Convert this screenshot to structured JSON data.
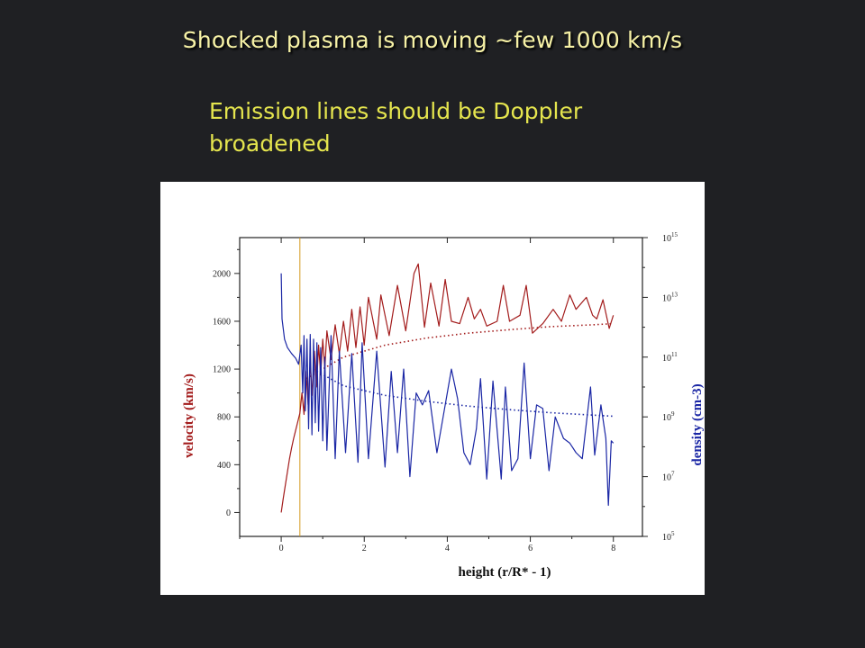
{
  "slide": {
    "title": "Shocked plasma is moving ~few 1000 km/s",
    "bullet": "Emission lines should be Doppler\nbroadened"
  },
  "colors": {
    "background": "#1f2023",
    "title": "#f7f2a6",
    "bullet": "#e5e54e",
    "velocity_series": "#a31c1c",
    "density_series": "#1b27a5",
    "marker_line": "#d49a20"
  },
  "chart_data": {
    "type": "line",
    "title": "",
    "xlabel": "height (r/R* - 1)",
    "ylabel": "velocity (km/s)",
    "y2label": "density (cm-3)",
    "xlim": [
      -1,
      8.7
    ],
    "ylim": [
      -200,
      2300
    ],
    "y2lim_log": [
      5,
      15
    ],
    "x_ticks": [
      "0",
      "2",
      "4",
      "6",
      "8"
    ],
    "y_ticks": [
      "0",
      "400",
      "800",
      "1200",
      "1600",
      "2000"
    ],
    "y2_ticks_exponents": [
      "15",
      "13",
      "11",
      "9",
      "7",
      "5"
    ],
    "y2_tick_base": "10",
    "grid": false,
    "vertical_marker_x": 0.45,
    "series": [
      {
        "axis": "left",
        "style": "solid",
        "points": [
          [
            0.0,
            0
          ],
          [
            0.05,
            120
          ],
          [
            0.1,
            230
          ],
          [
            0.15,
            340
          ],
          [
            0.2,
            450
          ],
          [
            0.25,
            540
          ],
          [
            0.3,
            620
          ],
          [
            0.35,
            690
          ],
          [
            0.4,
            760
          ],
          [
            0.45,
            830
          ],
          [
            0.5,
            1000
          ],
          [
            0.55,
            820
          ],
          [
            0.6,
            1180
          ],
          [
            0.65,
            900
          ],
          [
            0.7,
            1250
          ],
          [
            0.75,
            980
          ],
          [
            0.8,
            1350
          ],
          [
            0.85,
            1050
          ],
          [
            0.9,
            1400
          ],
          [
            0.95,
            1150
          ],
          [
            1.0,
            1450
          ],
          [
            1.05,
            1200
          ],
          [
            1.1,
            1520
          ],
          [
            1.2,
            1280
          ],
          [
            1.3,
            1570
          ],
          [
            1.4,
            1330
          ],
          [
            1.5,
            1600
          ],
          [
            1.6,
            1350
          ],
          [
            1.7,
            1700
          ],
          [
            1.8,
            1380
          ],
          [
            1.9,
            1720
          ],
          [
            2.0,
            1400
          ],
          [
            2.1,
            1800
          ],
          [
            2.3,
            1450
          ],
          [
            2.4,
            1820
          ],
          [
            2.6,
            1480
          ],
          [
            2.8,
            1900
          ],
          [
            3.0,
            1520
          ],
          [
            3.2,
            2000
          ],
          [
            3.3,
            2080
          ],
          [
            3.45,
            1550
          ],
          [
            3.6,
            1920
          ],
          [
            3.8,
            1560
          ],
          [
            3.95,
            1950
          ],
          [
            4.1,
            1600
          ],
          [
            4.3,
            1580
          ],
          [
            4.5,
            1800
          ],
          [
            4.65,
            1620
          ],
          [
            4.8,
            1700
          ],
          [
            4.95,
            1560
          ],
          [
            5.2,
            1600
          ],
          [
            5.35,
            1900
          ],
          [
            5.5,
            1600
          ],
          [
            5.75,
            1650
          ],
          [
            5.9,
            1900
          ],
          [
            6.05,
            1500
          ],
          [
            6.3,
            1580
          ],
          [
            6.55,
            1700
          ],
          [
            6.75,
            1600
          ],
          [
            6.95,
            1820
          ],
          [
            7.1,
            1700
          ],
          [
            7.35,
            1800
          ],
          [
            7.5,
            1650
          ],
          [
            7.6,
            1620
          ],
          [
            7.75,
            1780
          ],
          [
            7.9,
            1540
          ],
          [
            8.0,
            1650
          ]
        ]
      },
      {
        "axis": "left",
        "style": "dotted",
        "points": [
          [
            0.6,
            1120
          ],
          [
            1.5,
            1300
          ],
          [
            2.5,
            1400
          ],
          [
            3.5,
            1460
          ],
          [
            4.5,
            1500
          ],
          [
            5.5,
            1530
          ],
          [
            6.5,
            1555
          ],
          [
            7.5,
            1570
          ],
          [
            8.0,
            1580
          ]
        ]
      },
      {
        "axis": "left",
        "style": "solid",
        "points": [
          [
            0.0,
            2000
          ],
          [
            0.02,
            1620
          ],
          [
            0.08,
            1450
          ],
          [
            0.15,
            1380
          ],
          [
            0.25,
            1330
          ],
          [
            0.35,
            1290
          ],
          [
            0.42,
            1240
          ],
          [
            0.48,
            1400
          ],
          [
            0.52,
            1000
          ],
          [
            0.55,
            1480
          ],
          [
            0.58,
            850
          ],
          [
            0.62,
            1450
          ],
          [
            0.66,
            700
          ],
          [
            0.7,
            1490
          ],
          [
            0.74,
            650
          ],
          [
            0.78,
            1450
          ],
          [
            0.82,
            750
          ],
          [
            0.86,
            1420
          ],
          [
            0.9,
            680
          ],
          [
            0.95,
            1380
          ],
          [
            1.0,
            600
          ],
          [
            1.05,
            1300
          ],
          [
            1.1,
            520
          ],
          [
            1.2,
            1480
          ],
          [
            1.3,
            450
          ],
          [
            1.4,
            1350
          ],
          [
            1.55,
            500
          ],
          [
            1.7,
            1330
          ],
          [
            1.85,
            420
          ],
          [
            1.95,
            1420
          ],
          [
            2.1,
            450
          ],
          [
            2.3,
            1350
          ],
          [
            2.5,
            380
          ],
          [
            2.65,
            1180
          ],
          [
            2.8,
            500
          ],
          [
            2.95,
            1200
          ],
          [
            3.1,
            300
          ],
          [
            3.25,
            1000
          ],
          [
            3.4,
            900
          ],
          [
            3.55,
            1020
          ],
          [
            3.75,
            500
          ],
          [
            3.9,
            800
          ],
          [
            4.0,
            1000
          ],
          [
            4.1,
            1200
          ],
          [
            4.25,
            950
          ],
          [
            4.4,
            500
          ],
          [
            4.55,
            400
          ],
          [
            4.7,
            700
          ],
          [
            4.8,
            1120
          ],
          [
            4.95,
            280
          ],
          [
            5.1,
            1100
          ],
          [
            5.3,
            280
          ],
          [
            5.4,
            1050
          ],
          [
            5.55,
            350
          ],
          [
            5.7,
            450
          ],
          [
            5.85,
            1250
          ],
          [
            6.0,
            450
          ],
          [
            6.15,
            900
          ],
          [
            6.3,
            870
          ],
          [
            6.45,
            350
          ],
          [
            6.6,
            800
          ],
          [
            6.8,
            620
          ],
          [
            6.95,
            580
          ],
          [
            7.1,
            500
          ],
          [
            7.25,
            450
          ],
          [
            7.45,
            1050
          ],
          [
            7.55,
            480
          ],
          [
            7.7,
            900
          ],
          [
            7.82,
            620
          ],
          [
            7.88,
            60
          ],
          [
            7.95,
            600
          ],
          [
            8.0,
            580
          ]
        ]
      },
      {
        "axis": "left",
        "style": "dotted",
        "points": [
          [
            0.6,
            1230
          ],
          [
            1.5,
            1060
          ],
          [
            2.5,
            980
          ],
          [
            3.5,
            930
          ],
          [
            4.5,
            890
          ],
          [
            5.5,
            860
          ],
          [
            6.5,
            835
          ],
          [
            7.5,
            815
          ],
          [
            8.0,
            805
          ]
        ]
      }
    ]
  }
}
